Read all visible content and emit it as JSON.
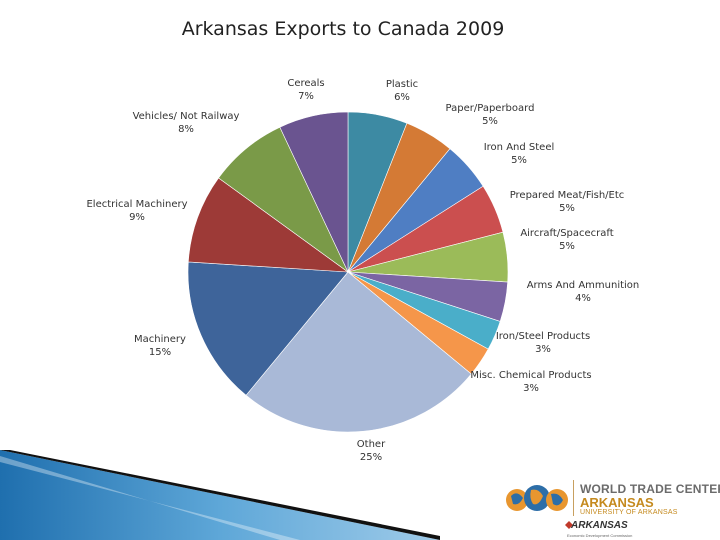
{
  "chart_data": {
    "type": "pie",
    "title": "Arkansas Exports to Canada 2009",
    "slices": [
      {
        "label": "Plastic",
        "value_label": "6%",
        "value": 6,
        "color": "#3d8aa3"
      },
      {
        "label": "Paper/Paperboard",
        "value_label": "5%",
        "value": 5,
        "color": "#d47a35"
      },
      {
        "label": "Iron And Steel",
        "value_label": "5%",
        "value": 5,
        "color": "#4f7ec3"
      },
      {
        "label": "Prepared Meat/Fish/Etc",
        "value_label": "5%",
        "value": 5,
        "color": "#cb4f4f"
      },
      {
        "label": "Aircraft/Spacecraft",
        "value_label": "5%",
        "value": 5,
        "color": "#9bbb59"
      },
      {
        "label": "Arms And Ammunition",
        "value_label": "4%",
        "value": 4,
        "color": "#7b65a3"
      },
      {
        "label": "Iron/Steel Products",
        "value_label": "3%",
        "value": 3,
        "color": "#4aaec9"
      },
      {
        "label": "Misc. Chemical Products",
        "value_label": "3%",
        "value": 3,
        "color": "#f5964a"
      },
      {
        "label": "Other",
        "value_label": "25%",
        "value": 25,
        "color": "#a9b9d7"
      },
      {
        "label": "Machinery",
        "value_label": "15%",
        "value": 15,
        "color": "#3e649a"
      },
      {
        "label": "Electrical Machinery",
        "value_label": "9%",
        "value": 9,
        "color": "#9d3a37"
      },
      {
        "label": "Vehicles/ Not Railway",
        "value_label": "8%",
        "value": 8,
        "color": "#7a9a48"
      },
      {
        "label": "Cereals",
        "value_label": "7%",
        "value": 7,
        "color": "#6a5490"
      }
    ]
  },
  "logo": {
    "line1": "WORLD TRADE CENTER",
    "line2": "ARKANSAS",
    "line3": "UNIVERSITY OF ARKANSAS",
    "arkansas": "ARKANSAS",
    "tagline": "Economic Development Commission"
  }
}
